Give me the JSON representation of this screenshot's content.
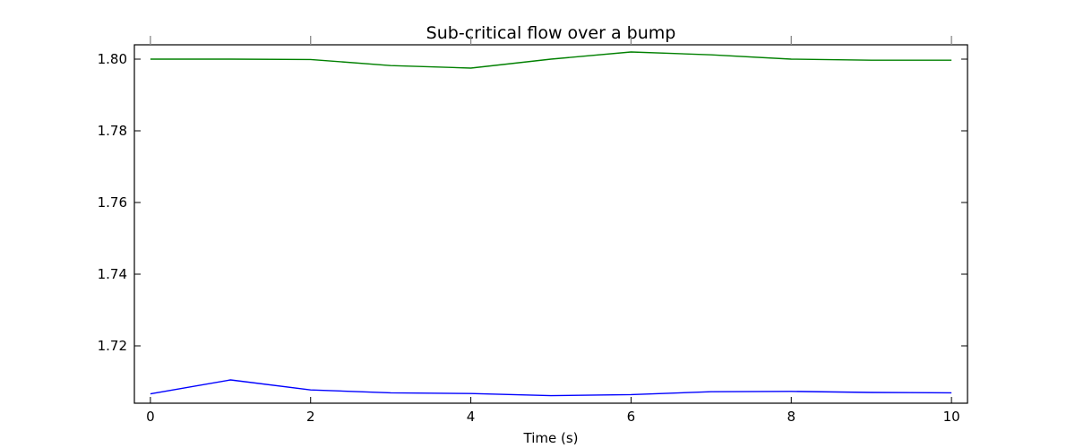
{
  "chart_data": {
    "type": "line",
    "title": "Sub-critical flow over a bump",
    "xlabel": "Time (s)",
    "ylabel": "",
    "xlim": [
      -0.2,
      10.2
    ],
    "ylim": [
      1.704,
      1.804
    ],
    "xticks": [
      0,
      2,
      4,
      6,
      8,
      10
    ],
    "xtick_labels": [
      "0",
      "2",
      "4",
      "6",
      "8",
      "10"
    ],
    "yticks": [
      1.72,
      1.74,
      1.76,
      1.78,
      1.8
    ],
    "ytick_labels": [
      "1.72",
      "1.74",
      "1.76",
      "1.78",
      "1.80"
    ],
    "grid": false,
    "legend": "none",
    "x": [
      0,
      1,
      2,
      3,
      4,
      5,
      6,
      7,
      8,
      9,
      10
    ],
    "series": [
      {
        "color": "#008000",
        "values": [
          1.8,
          1.8,
          1.7999,
          1.7982,
          1.7975,
          1.8,
          1.802,
          1.8012,
          1.8,
          1.7997,
          1.7997
        ]
      },
      {
        "color": "#0000ff",
        "values": [
          1.7066,
          1.7105,
          1.7077,
          1.7069,
          1.7067,
          1.7061,
          1.7064,
          1.7072,
          1.7073,
          1.707,
          1.7069
        ]
      }
    ]
  }
}
